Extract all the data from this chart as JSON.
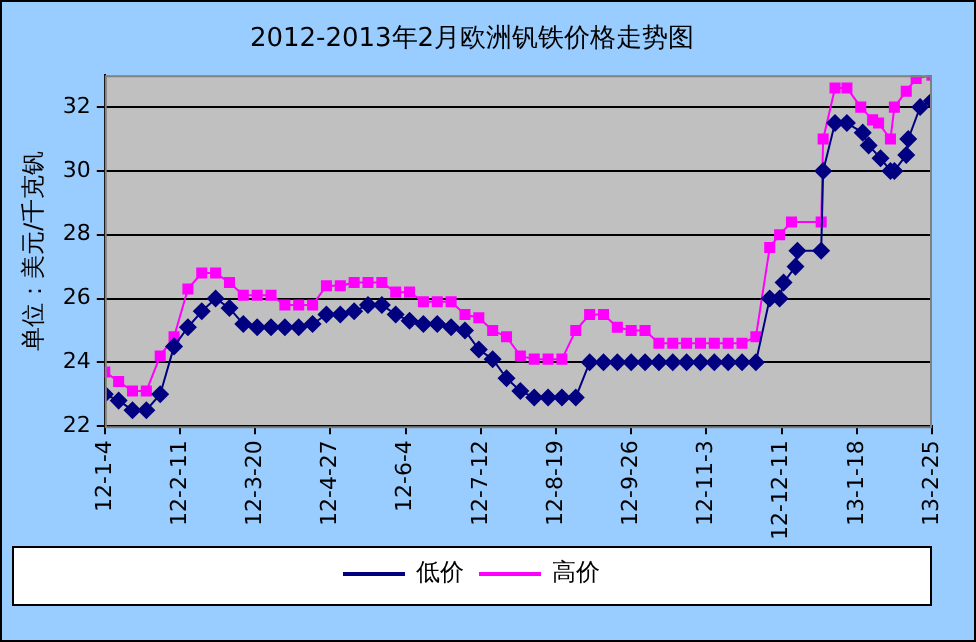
{
  "chart_data": {
    "type": "line",
    "title": "2012-2013年2月欧洲钒铁价格走势图",
    "ylabel": "单位：美元/千克钒",
    "xlim": [
      "2012-01-04",
      "2013-02-25"
    ],
    "xticks": [
      {
        "value": "2012-01-04",
        "label": "12-1-4"
      },
      {
        "value": "2012-02-11",
        "label": "12-2-11"
      },
      {
        "value": "2012-03-20",
        "label": "12-3-20"
      },
      {
        "value": "2012-04-27",
        "label": "12-4-27"
      },
      {
        "value": "2012-06-04",
        "label": "12-6-4"
      },
      {
        "value": "2012-07-12",
        "label": "12-7-12"
      },
      {
        "value": "2012-08-19",
        "label": "12-8-19"
      },
      {
        "value": "2012-09-26",
        "label": "12-9-26"
      },
      {
        "value": "2012-11-03",
        "label": "12-11-3"
      },
      {
        "value": "2012-12-11",
        "label": "12-12-11"
      },
      {
        "value": "2013-01-18",
        "label": "13-1-18"
      },
      {
        "value": "2013-02-25",
        "label": "13-2-25"
      }
    ],
    "ylim": [
      22,
      33
    ],
    "yticks": [
      22,
      24,
      26,
      28,
      30,
      32
    ],
    "grid": "y",
    "legend": "bottom",
    "series": [
      {
        "name": "低价",
        "color": "#000080",
        "marker": "diamond",
        "x": [
          "2012-01-04",
          "2012-01-11",
          "2012-01-18",
          "2012-01-25",
          "2012-02-01",
          "2012-02-08",
          "2012-02-15",
          "2012-02-22",
          "2012-02-29",
          "2012-03-07",
          "2012-03-14",
          "2012-03-21",
          "2012-03-28",
          "2012-04-04",
          "2012-04-11",
          "2012-04-18",
          "2012-04-25",
          "2012-05-02",
          "2012-05-09",
          "2012-05-16",
          "2012-05-23",
          "2012-05-30",
          "2012-06-06",
          "2012-06-13",
          "2012-06-20",
          "2012-06-27",
          "2012-07-04",
          "2012-07-11",
          "2012-07-18",
          "2012-07-25",
          "2012-08-01",
          "2012-08-08",
          "2012-08-15",
          "2012-08-22",
          "2012-08-29",
          "2012-09-05",
          "2012-09-12",
          "2012-09-19",
          "2012-09-26",
          "2012-10-03",
          "2012-10-10",
          "2012-10-17",
          "2012-10-24",
          "2012-10-31",
          "2012-11-07",
          "2012-11-14",
          "2012-11-21",
          "2012-11-28",
          "2012-12-05",
          "2012-12-10",
          "2012-12-12",
          "2012-12-18",
          "2012-12-19",
          "2012-12-31",
          "2013-01-01",
          "2013-01-07",
          "2013-01-13",
          "2013-01-21",
          "2013-01-24",
          "2013-01-30",
          "2013-02-04",
          "2013-02-06",
          "2013-02-12",
          "2013-02-13",
          "2013-02-19",
          "2013-02-25"
        ],
        "values": [
          23.0,
          22.8,
          22.5,
          22.5,
          23.0,
          24.5,
          25.1,
          25.6,
          26.0,
          25.7,
          25.2,
          25.1,
          25.1,
          25.1,
          25.1,
          25.2,
          25.5,
          25.5,
          25.6,
          25.8,
          25.8,
          25.5,
          25.3,
          25.2,
          25.2,
          25.1,
          25.0,
          24.4,
          24.1,
          23.5,
          23.1,
          22.9,
          22.9,
          22.9,
          22.9,
          24.0,
          24.0,
          24.0,
          24.0,
          24.0,
          24.0,
          24.0,
          24.0,
          24.0,
          24.0,
          24.0,
          24.0,
          24.0,
          26.0,
          26.0,
          26.5,
          27.0,
          27.5,
          27.5,
          30.0,
          31.5,
          31.5,
          31.2,
          30.8,
          30.4,
          30.0,
          30.0,
          30.5,
          31.0,
          32.0,
          32.2
        ]
      },
      {
        "name": "高价",
        "color": "#ff00ff",
        "marker": "square",
        "x": [
          "2012-01-04",
          "2012-01-11",
          "2012-01-18",
          "2012-01-25",
          "2012-02-01",
          "2012-02-08",
          "2012-02-15",
          "2012-02-22",
          "2012-02-29",
          "2012-03-07",
          "2012-03-14",
          "2012-03-21",
          "2012-03-28",
          "2012-04-04",
          "2012-04-11",
          "2012-04-18",
          "2012-04-25",
          "2012-05-02",
          "2012-05-09",
          "2012-05-16",
          "2012-05-23",
          "2012-05-30",
          "2012-06-06",
          "2012-06-13",
          "2012-06-20",
          "2012-06-27",
          "2012-07-04",
          "2012-07-11",
          "2012-07-18",
          "2012-07-25",
          "2012-08-01",
          "2012-08-08",
          "2012-08-15",
          "2012-08-22",
          "2012-08-29",
          "2012-09-05",
          "2012-09-12",
          "2012-09-19",
          "2012-09-26",
          "2012-10-03",
          "2012-10-10",
          "2012-10-17",
          "2012-10-24",
          "2012-10-31",
          "2012-11-07",
          "2012-11-14",
          "2012-11-21",
          "2012-11-28",
          "2012-12-05",
          "2012-12-10",
          "2012-12-16",
          "2012-12-31",
          "2013-01-01",
          "2013-01-07",
          "2013-01-13",
          "2013-01-20",
          "2013-01-26",
          "2013-01-29",
          "2013-02-04",
          "2013-02-06",
          "2013-02-12",
          "2013-02-17",
          "2013-02-25"
        ],
        "values": [
          23.7,
          23.4,
          23.1,
          23.1,
          24.2,
          24.8,
          26.3,
          26.8,
          26.8,
          26.5,
          26.1,
          26.1,
          26.1,
          25.8,
          25.8,
          25.8,
          26.4,
          26.4,
          26.5,
          26.5,
          26.5,
          26.2,
          26.2,
          25.9,
          25.9,
          25.9,
          25.5,
          25.4,
          25.0,
          24.8,
          24.2,
          24.1,
          24.1,
          24.1,
          25.0,
          25.5,
          25.5,
          25.1,
          25.0,
          25.0,
          24.6,
          24.6,
          24.6,
          24.6,
          24.6,
          24.6,
          24.6,
          24.8,
          27.6,
          28.0,
          28.4,
          28.4,
          31.0,
          32.6,
          32.6,
          32.0,
          31.6,
          31.5,
          31.0,
          32.0,
          32.5,
          32.9,
          33.0
        ]
      }
    ]
  }
}
